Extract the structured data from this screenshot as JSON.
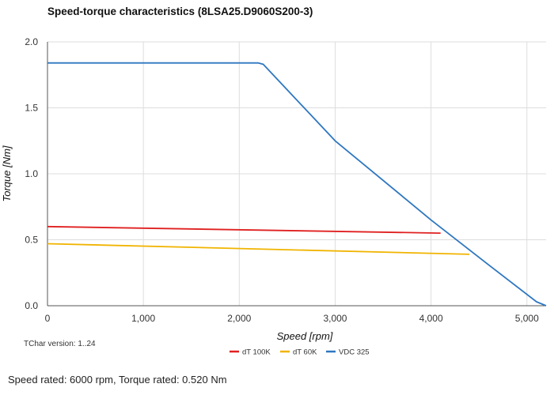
{
  "chart_data": {
    "type": "line",
    "title": "Speed-torque characteristics (8LSA25.D9060S200-3)",
    "xlabel": "Speed [rpm]",
    "ylabel": "Torque [Nm]",
    "xlim": [
      0,
      5200
    ],
    "ylim": [
      0,
      2.0
    ],
    "xticks": [
      0,
      1000,
      2000,
      3000,
      4000,
      5000
    ],
    "xtick_labels": [
      "0",
      "1,000",
      "2,000",
      "3,000",
      "4,000",
      "5,000"
    ],
    "yticks": [
      0,
      0.5,
      1.0,
      1.5,
      2.0
    ],
    "ytick_labels": [
      "0.0",
      "0.5",
      "1.0",
      "1.5",
      "2.0"
    ],
    "grid": true,
    "legend_position": "bottom",
    "series": [
      {
        "name": "dT 100K",
        "color": "#e02020",
        "points": [
          [
            0,
            0.6
          ],
          [
            4100,
            0.55
          ]
        ]
      },
      {
        "name": "dT 60K",
        "color": "#f0b400",
        "points": [
          [
            0,
            0.47
          ],
          [
            4400,
            0.39
          ]
        ]
      },
      {
        "name": "VDC 325",
        "color": "#2e77c0",
        "points": [
          [
            0,
            1.84
          ],
          [
            2200,
            1.84
          ],
          [
            2250,
            1.83
          ],
          [
            3000,
            1.25
          ],
          [
            4000,
            0.65
          ],
          [
            4600,
            0.31
          ],
          [
            5100,
            0.03
          ],
          [
            5200,
            0.0
          ]
        ]
      }
    ]
  },
  "version_text": "TChar version: 1..24",
  "footer_text": "Speed rated: 6000 rpm, Torque rated: 0.520 Nm"
}
